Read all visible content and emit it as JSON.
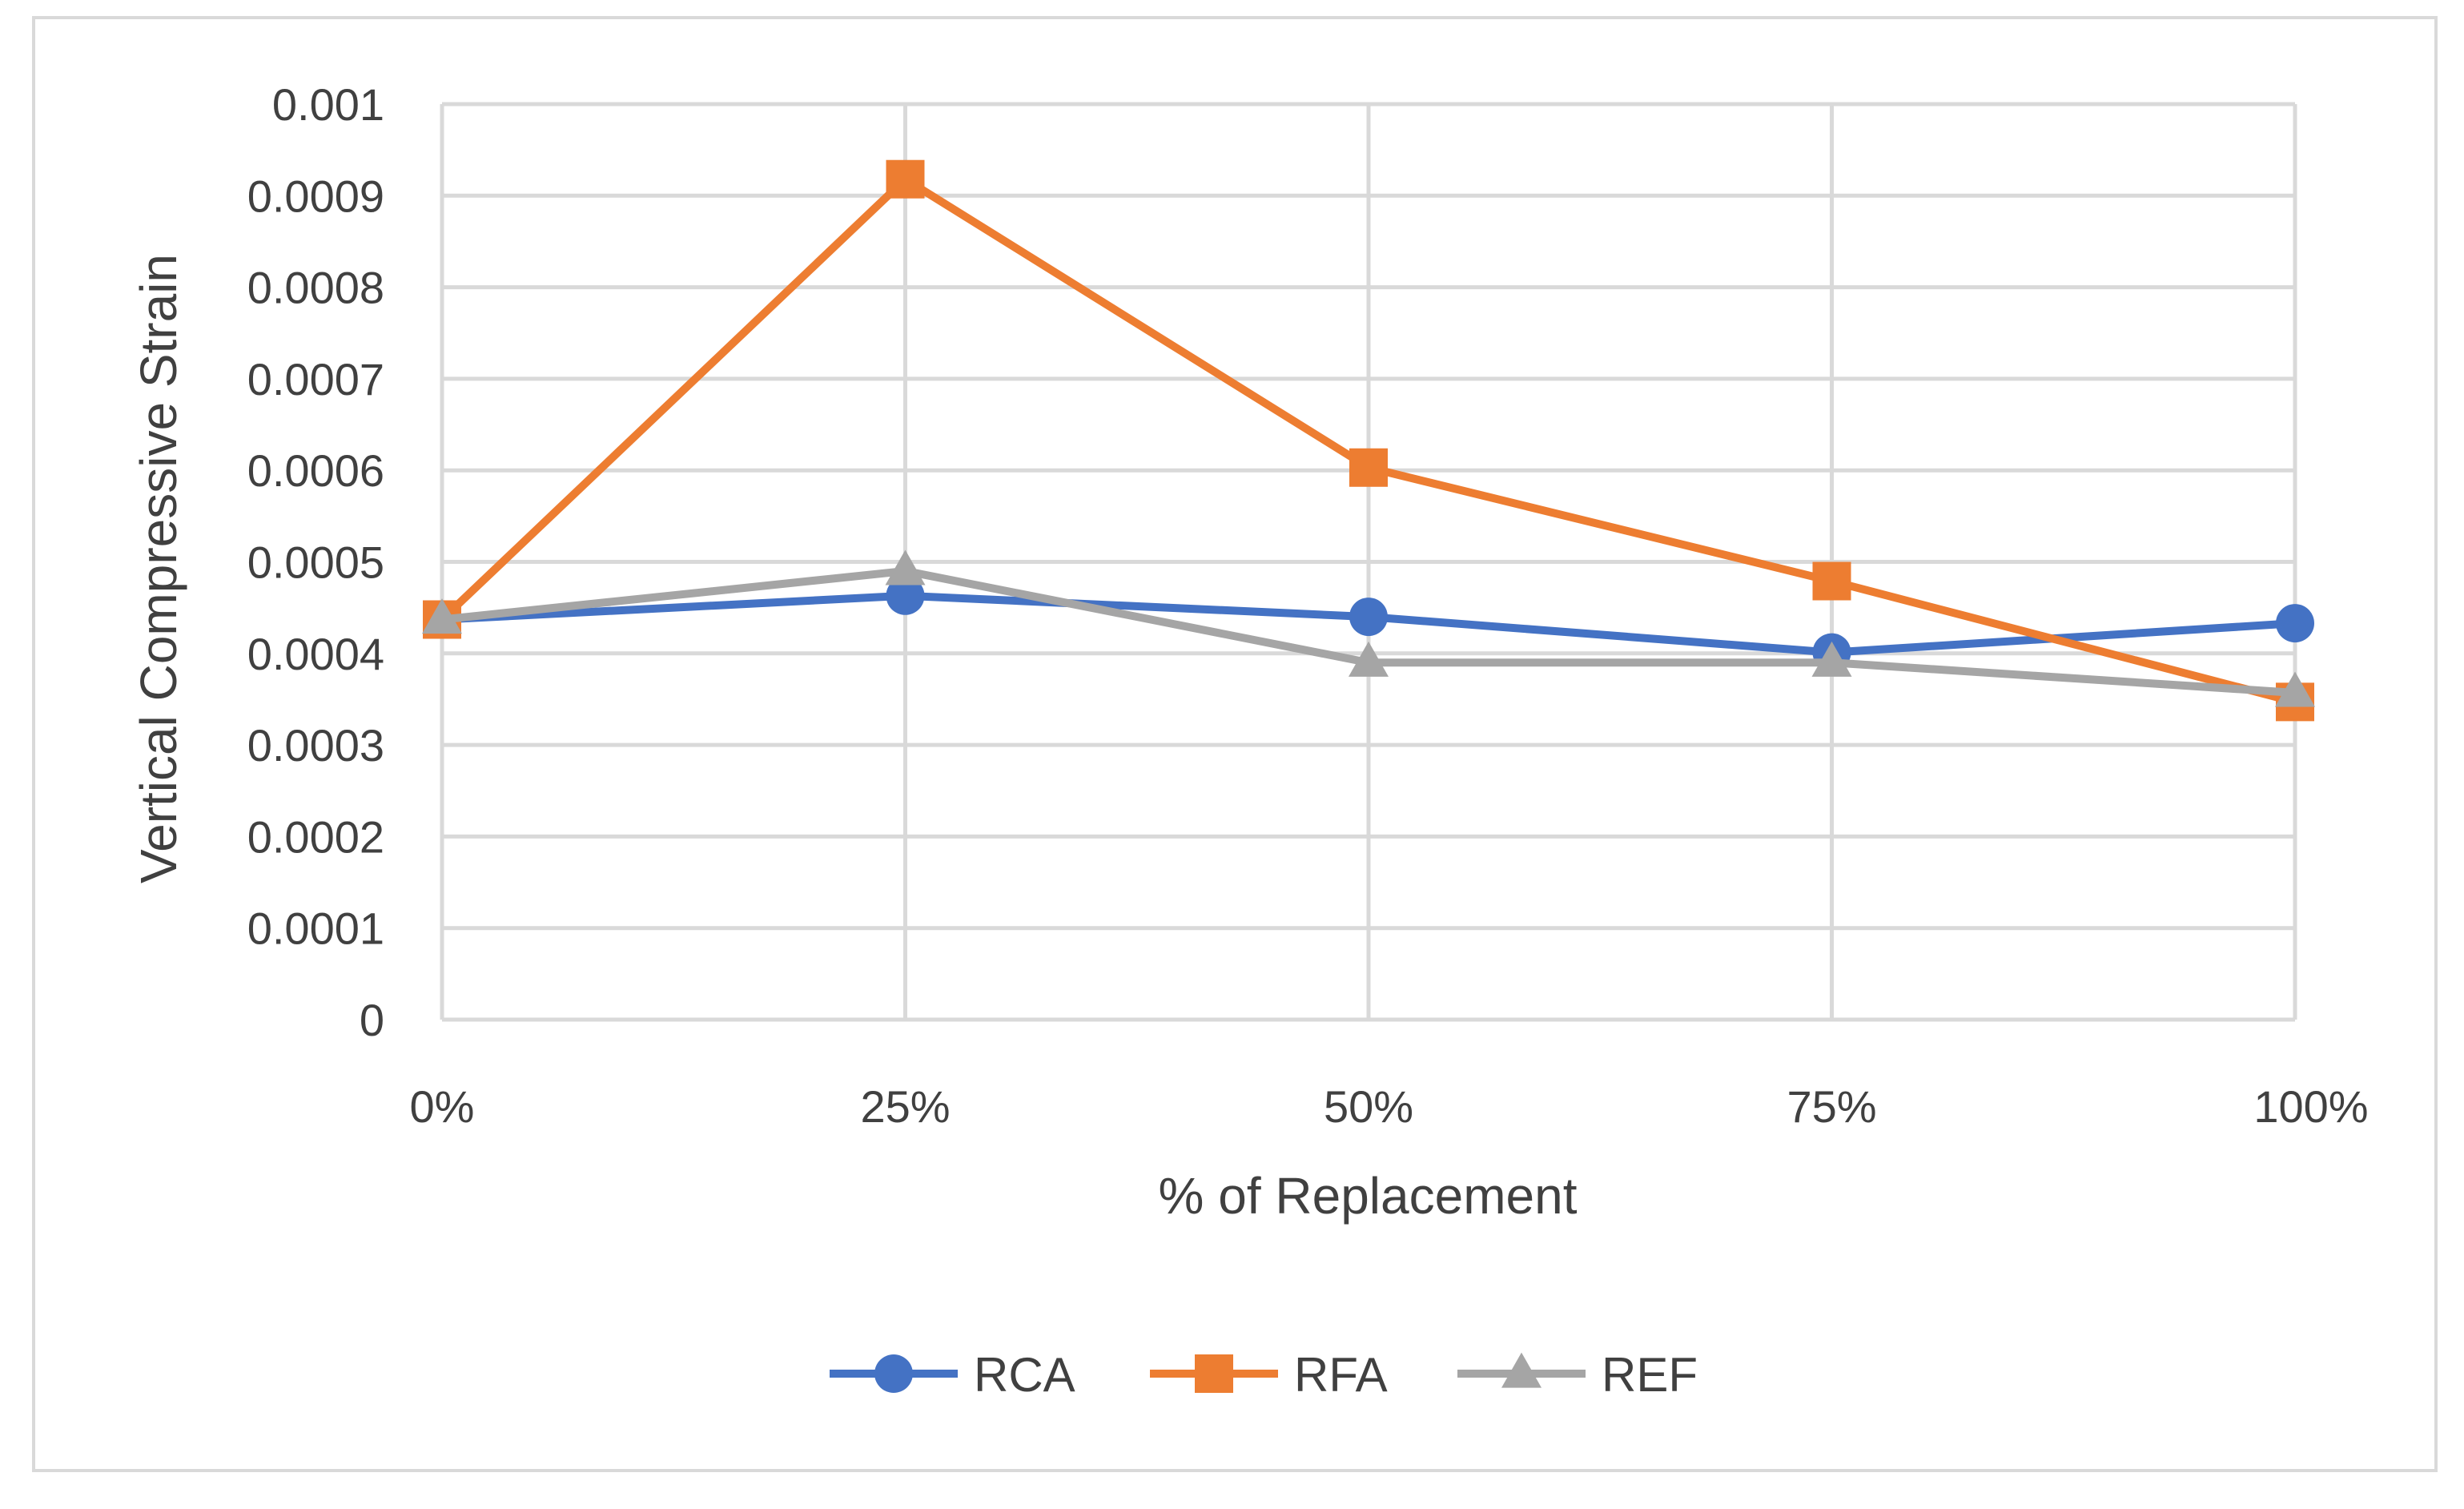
{
  "chart_data": {
    "type": "line",
    "title": "",
    "xlabel": "% of Replacement",
    "ylabel": "Vertical Compressive Strain",
    "categories": [
      "0%",
      "25%",
      "50%",
      "75%",
      "100%"
    ],
    "ylim": [
      0,
      0.001
    ],
    "yticks": [
      0,
      0.0001,
      0.0002,
      0.0003,
      0.0004,
      0.0005,
      0.0006,
      0.0007,
      0.0008,
      0.0009,
      0.001
    ],
    "ytick_labels": [
      "0",
      "0.0001",
      "0.0002",
      "0.0003",
      "0.0004",
      "0.0005",
      "0.0006",
      "0.0007",
      "0.0008",
      "0.0009",
      "0.001"
    ],
    "grid": true,
    "legend_position": "bottom",
    "series": [
      {
        "name": "RCA",
        "values": [
          0.000437,
          0.000463,
          0.00044,
          0.000401,
          0.000433
        ],
        "color": "#4472C4",
        "marker": "circle"
      },
      {
        "name": "RFA",
        "values": [
          0.000437,
          0.000918,
          0.000603,
          0.000479,
          0.000347
        ],
        "color": "#ED7D31",
        "marker": "square"
      },
      {
        "name": "REF",
        "values": [
          0.000437,
          0.00049,
          0.00039,
          0.00039,
          0.000357
        ],
        "color": "#A5A5A5",
        "marker": "triangle"
      }
    ]
  }
}
